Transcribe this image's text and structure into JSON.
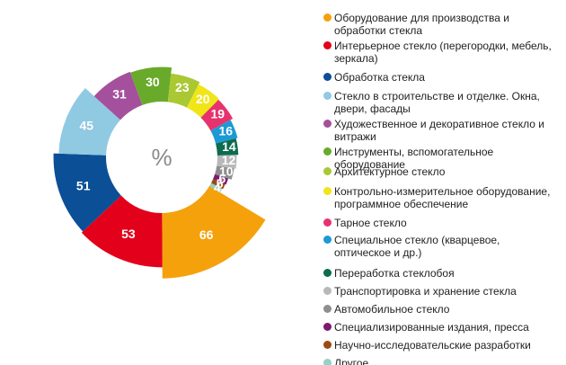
{
  "chart_data": {
    "type": "radial",
    "center_label": "%",
    "categories": [
      "Оборудование для производства и обработки стекла",
      "Интерьерное стекло (перегородки, мебель, зеркала)",
      "Обработка стекла",
      "Стекло в строительстве и отделке. Окна, двери, фасады",
      "Художественное и декоративное стекло и витражи",
      "Инструменты, вспомогательное оборудование",
      "Архитектурное стекло",
      "Контрольно-измерительное оборудование, программное обеспечение",
      "Тарное стекло",
      "Специальное стекло (кварцевое, оптическое и др.)",
      "Переработка стеклобоя",
      "Транспортировка и хранение стекла",
      "Автомобильное стекло",
      "Специализированные издания, пресса",
      "Научно-исследовательские разработки",
      "Другое"
    ],
    "values": [
      66,
      53,
      51,
      45,
      31,
      30,
      23,
      20,
      19,
      16,
      14,
      12,
      10,
      6,
      5,
      4
    ],
    "colors": [
      "#f5a10c",
      "#e2001a",
      "#0b4f96",
      "#8fc9e2",
      "#a5509c",
      "#6aaa2b",
      "#a9c833",
      "#f0e517",
      "#e6336e",
      "#1b9ad6",
      "#0d6b4f",
      "#b8b8b8",
      "#8e8e8e",
      "#7b1a6f",
      "#9b4a12",
      "#94d1c7"
    ]
  }
}
